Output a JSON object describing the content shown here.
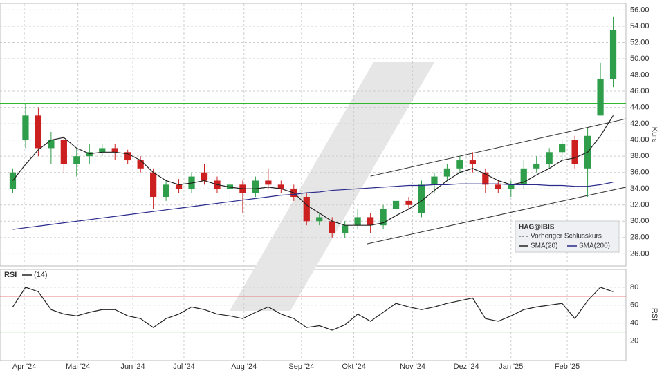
{
  "chart_data": {
    "type": "candlestick",
    "symbol": "HAG@IBIS",
    "ylabel": "Kurs",
    "legend_items": [
      "Vorheriger Schlusskurs",
      "SMA(20)",
      "SMA(200)"
    ],
    "up_color": "#2e9e4a",
    "down_color": "#cc1f1f",
    "xlim": [
      -1,
      48
    ],
    "xticks": [
      {
        "value": 0.9,
        "label": "Apr '24"
      },
      {
        "value": 5.1,
        "label": "Mai '24"
      },
      {
        "value": 9.4,
        "label": "Jun '24"
      },
      {
        "value": 13.4,
        "label": "Jul '24"
      },
      {
        "value": 18.1,
        "label": "Aug '24"
      },
      {
        "value": 22.6,
        "label": "Sep '24"
      },
      {
        "value": 26.7,
        "label": "Okt '24"
      },
      {
        "value": 31.3,
        "label": "Nov '24"
      },
      {
        "value": 35.5,
        "label": "Dez '24"
      },
      {
        "value": 39.0,
        "label": "Jan '25"
      },
      {
        "value": 43.4,
        "label": "Feb '25"
      }
    ],
    "ylim": [
      24.5,
      56.8
    ],
    "yticks": [
      {
        "value": 26,
        "label": "26.00"
      },
      {
        "value": 28,
        "label": "28.00"
      },
      {
        "value": 30,
        "label": "30.00"
      },
      {
        "value": 32,
        "label": "32.00"
      },
      {
        "value": 34,
        "label": "34.00"
      },
      {
        "value": 36,
        "label": "36.00"
      },
      {
        "value": 38,
        "label": "38.00"
      },
      {
        "value": 40,
        "label": "40.00"
      },
      {
        "value": 42,
        "label": "42.00"
      },
      {
        "value": 44,
        "label": "44.00"
      },
      {
        "value": 46,
        "label": "46.00"
      },
      {
        "value": 48,
        "label": "48.00"
      },
      {
        "value": 50,
        "label": "50.00"
      },
      {
        "value": 52,
        "label": "52.00"
      },
      {
        "value": 54,
        "label": "54.00"
      },
      {
        "value": 56,
        "label": "56.00"
      }
    ],
    "open": [
      34,
      40,
      43,
      39,
      40,
      37,
      38,
      38.5,
      39,
      38.5,
      37.5,
      36,
      33,
      34.5,
      34,
      36,
      35,
      34,
      34.5,
      33.5,
      35,
      34.5,
      34,
      33,
      30,
      30,
      28.5,
      29.5,
      30.5,
      29.5,
      31.5,
      32.5,
      31,
      34.5,
      35.5,
      36.5,
      37.5,
      36,
      34.5,
      34,
      34.5,
      36.5,
      37,
      38.5,
      40,
      36.5,
      43,
      47.5
    ],
    "high": [
      36.5,
      44.5,
      44,
      41,
      40.5,
      39,
      39.5,
      39.5,
      39.5,
      38.8,
      38,
      36.5,
      35,
      35.2,
      36,
      37,
      35.5,
      35,
      35,
      35.5,
      36.5,
      35,
      34.5,
      33.5,
      31,
      30.5,
      30,
      31.5,
      31,
      32,
      32.5,
      33,
      35,
      36,
      37,
      38,
      38.5,
      36.5,
      35,
      35,
      37.5,
      38,
      39,
      40,
      40.5,
      41.5,
      49.5,
      55.2
    ],
    "low": [
      33.5,
      39,
      38,
      37,
      36,
      35.5,
      37,
      38,
      37.5,
      37,
      36,
      31.5,
      32.5,
      33.5,
      33.5,
      34.5,
      33.5,
      32.5,
      31,
      33,
      34,
      33.5,
      32.5,
      29.5,
      29.5,
      28,
      28,
      29,
      28.5,
      29,
      31,
      31.5,
      30.5,
      33.5,
      35,
      36,
      36,
      33.5,
      33.5,
      33,
      34,
      36,
      36.5,
      37.5,
      36.5,
      33,
      43,
      46.5
    ],
    "close": [
      36,
      43,
      39,
      40,
      37,
      38,
      38.5,
      39,
      38.5,
      37.5,
      36.5,
      33,
      34.5,
      34,
      35.5,
      35,
      34,
      34.5,
      33.5,
      35,
      34.5,
      34,
      33,
      30,
      30.5,
      28.5,
      29.5,
      30.5,
      29.5,
      31.5,
      32.5,
      32,
      34.5,
      35.5,
      36.5,
      37.5,
      37,
      34.5,
      34,
      34.5,
      36.5,
      37,
      38.5,
      39.5,
      37,
      40.5,
      47.5,
      53.5
    ],
    "series": [
      {
        "name": "SMA(20)",
        "color": "#222222",
        "values": [
          35,
          37,
          38.8,
          40,
          40.3,
          39,
          38.3,
          38.5,
          38.5,
          38.3,
          37.5,
          36,
          35,
          34.5,
          34.7,
          35,
          34.5,
          34.2,
          34,
          34,
          34.2,
          34,
          33.5,
          32,
          31,
          30,
          29.5,
          29.5,
          29.5,
          29.8,
          30.7,
          31.5,
          32.5,
          33.8,
          35,
          36,
          36.5,
          35.8,
          35,
          34.5,
          34.8,
          35.7,
          36.5,
          37.5,
          37.8,
          38.5,
          40.5,
          43
        ]
      },
      {
        "name": "SMA(200)",
        "color": "#2b2b8c",
        "values": [
          29,
          29.2,
          29.4,
          29.6,
          29.8,
          30,
          30.2,
          30.4,
          30.6,
          30.8,
          31,
          31.2,
          31.4,
          31.6,
          31.8,
          32,
          32.2,
          32.4,
          32.6,
          32.8,
          33,
          33.2,
          33.3,
          33.5,
          33.6,
          33.8,
          33.9,
          34,
          34.1,
          34.2,
          34.3,
          34.4,
          34.4,
          34.5,
          34.5,
          34.6,
          34.6,
          34.6,
          34.6,
          34.5,
          34.5,
          34.5,
          34.4,
          34.4,
          34.3,
          34.3,
          34.5,
          34.8
        ]
      }
    ],
    "hlines": [
      {
        "value": 44.5,
        "color": "#2eb82e"
      }
    ],
    "trendlines": [
      {
        "x": [
          28.0,
          48.2
        ],
        "y": [
          35.54,
          42.6
        ],
        "color": "#333333"
      },
      {
        "x": [
          27.7,
          48.2
        ],
        "y": [
          27.2,
          34.2
        ],
        "color": "#333333"
      }
    ],
    "rsi": {
      "title": "RSI",
      "label": "(14)",
      "ylabel": "RSI",
      "color": "#222222",
      "ylim": [
        -2,
        100
      ],
      "yticks": [
        20,
        40,
        60,
        80
      ],
      "values": [
        58,
        80,
        75,
        55,
        50,
        48,
        52,
        55,
        55,
        48,
        45,
        35,
        45,
        50,
        58,
        55,
        50,
        48,
        45,
        52,
        58,
        50,
        45,
        35,
        37,
        32,
        38,
        50,
        42,
        52,
        62,
        58,
        55,
        58,
        62,
        65,
        68,
        45,
        42,
        48,
        55,
        58,
        60,
        62,
        45,
        65,
        80,
        75
      ],
      "hlines": [
        {
          "value": 70,
          "color": "#e05555"
        },
        {
          "value": 30,
          "color": "#55b555"
        }
      ]
    }
  }
}
